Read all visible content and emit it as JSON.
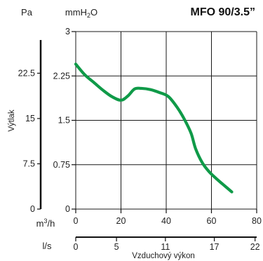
{
  "chart_data": {
    "type": "line",
    "title": "MFO 90/3.5”",
    "left_axis": {
      "unit": "Pa",
      "label": "Výtlak",
      "ticks": [
        "0",
        "7.5",
        "15",
        "22.5"
      ],
      "tick_values": [
        0,
        7.5,
        15,
        22.5
      ],
      "range": [
        0,
        29.4
      ]
    },
    "y_axis": {
      "unit_prefix": "mmH",
      "unit_sub": "2",
      "unit_suffix": "O",
      "ticks": [
        "0",
        "0.75",
        "1.5",
        "2.25",
        "3"
      ],
      "tick_values": [
        0,
        0.75,
        1.5,
        2.25,
        3
      ],
      "range": [
        0,
        3
      ]
    },
    "x_axis": {
      "unit_prefix": "m",
      "unit_sup": "3",
      "unit_suffix": "/h",
      "ticks": [
        "0",
        "20",
        "40",
        "60",
        "80"
      ],
      "tick_values": [
        0,
        20,
        40,
        60,
        80
      ],
      "range": [
        0,
        80
      ]
    },
    "x_axis_secondary": {
      "unit": "l/s",
      "label": "Vzduchový výkon",
      "ticks": [
        "0",
        "5",
        "11",
        "17",
        "22"
      ],
      "tick_values": [
        0,
        5,
        11,
        17,
        22
      ],
      "range": [
        0,
        22.2
      ]
    },
    "grid": true,
    "series": [
      {
        "color": "#0f9a48",
        "x": [
          0,
          4,
          8,
          12,
          16,
          20,
          23,
          26,
          29,
          33,
          37,
          41,
          45,
          48,
          51,
          53,
          56,
          59,
          62,
          65,
          69
        ],
        "y": [
          2.45,
          2.27,
          2.14,
          2.01,
          1.9,
          1.84,
          1.91,
          2.03,
          2.04,
          2.02,
          1.97,
          1.9,
          1.71,
          1.52,
          1.28,
          1.02,
          0.78,
          0.63,
          0.52,
          0.42,
          0.29
        ]
      }
    ]
  }
}
